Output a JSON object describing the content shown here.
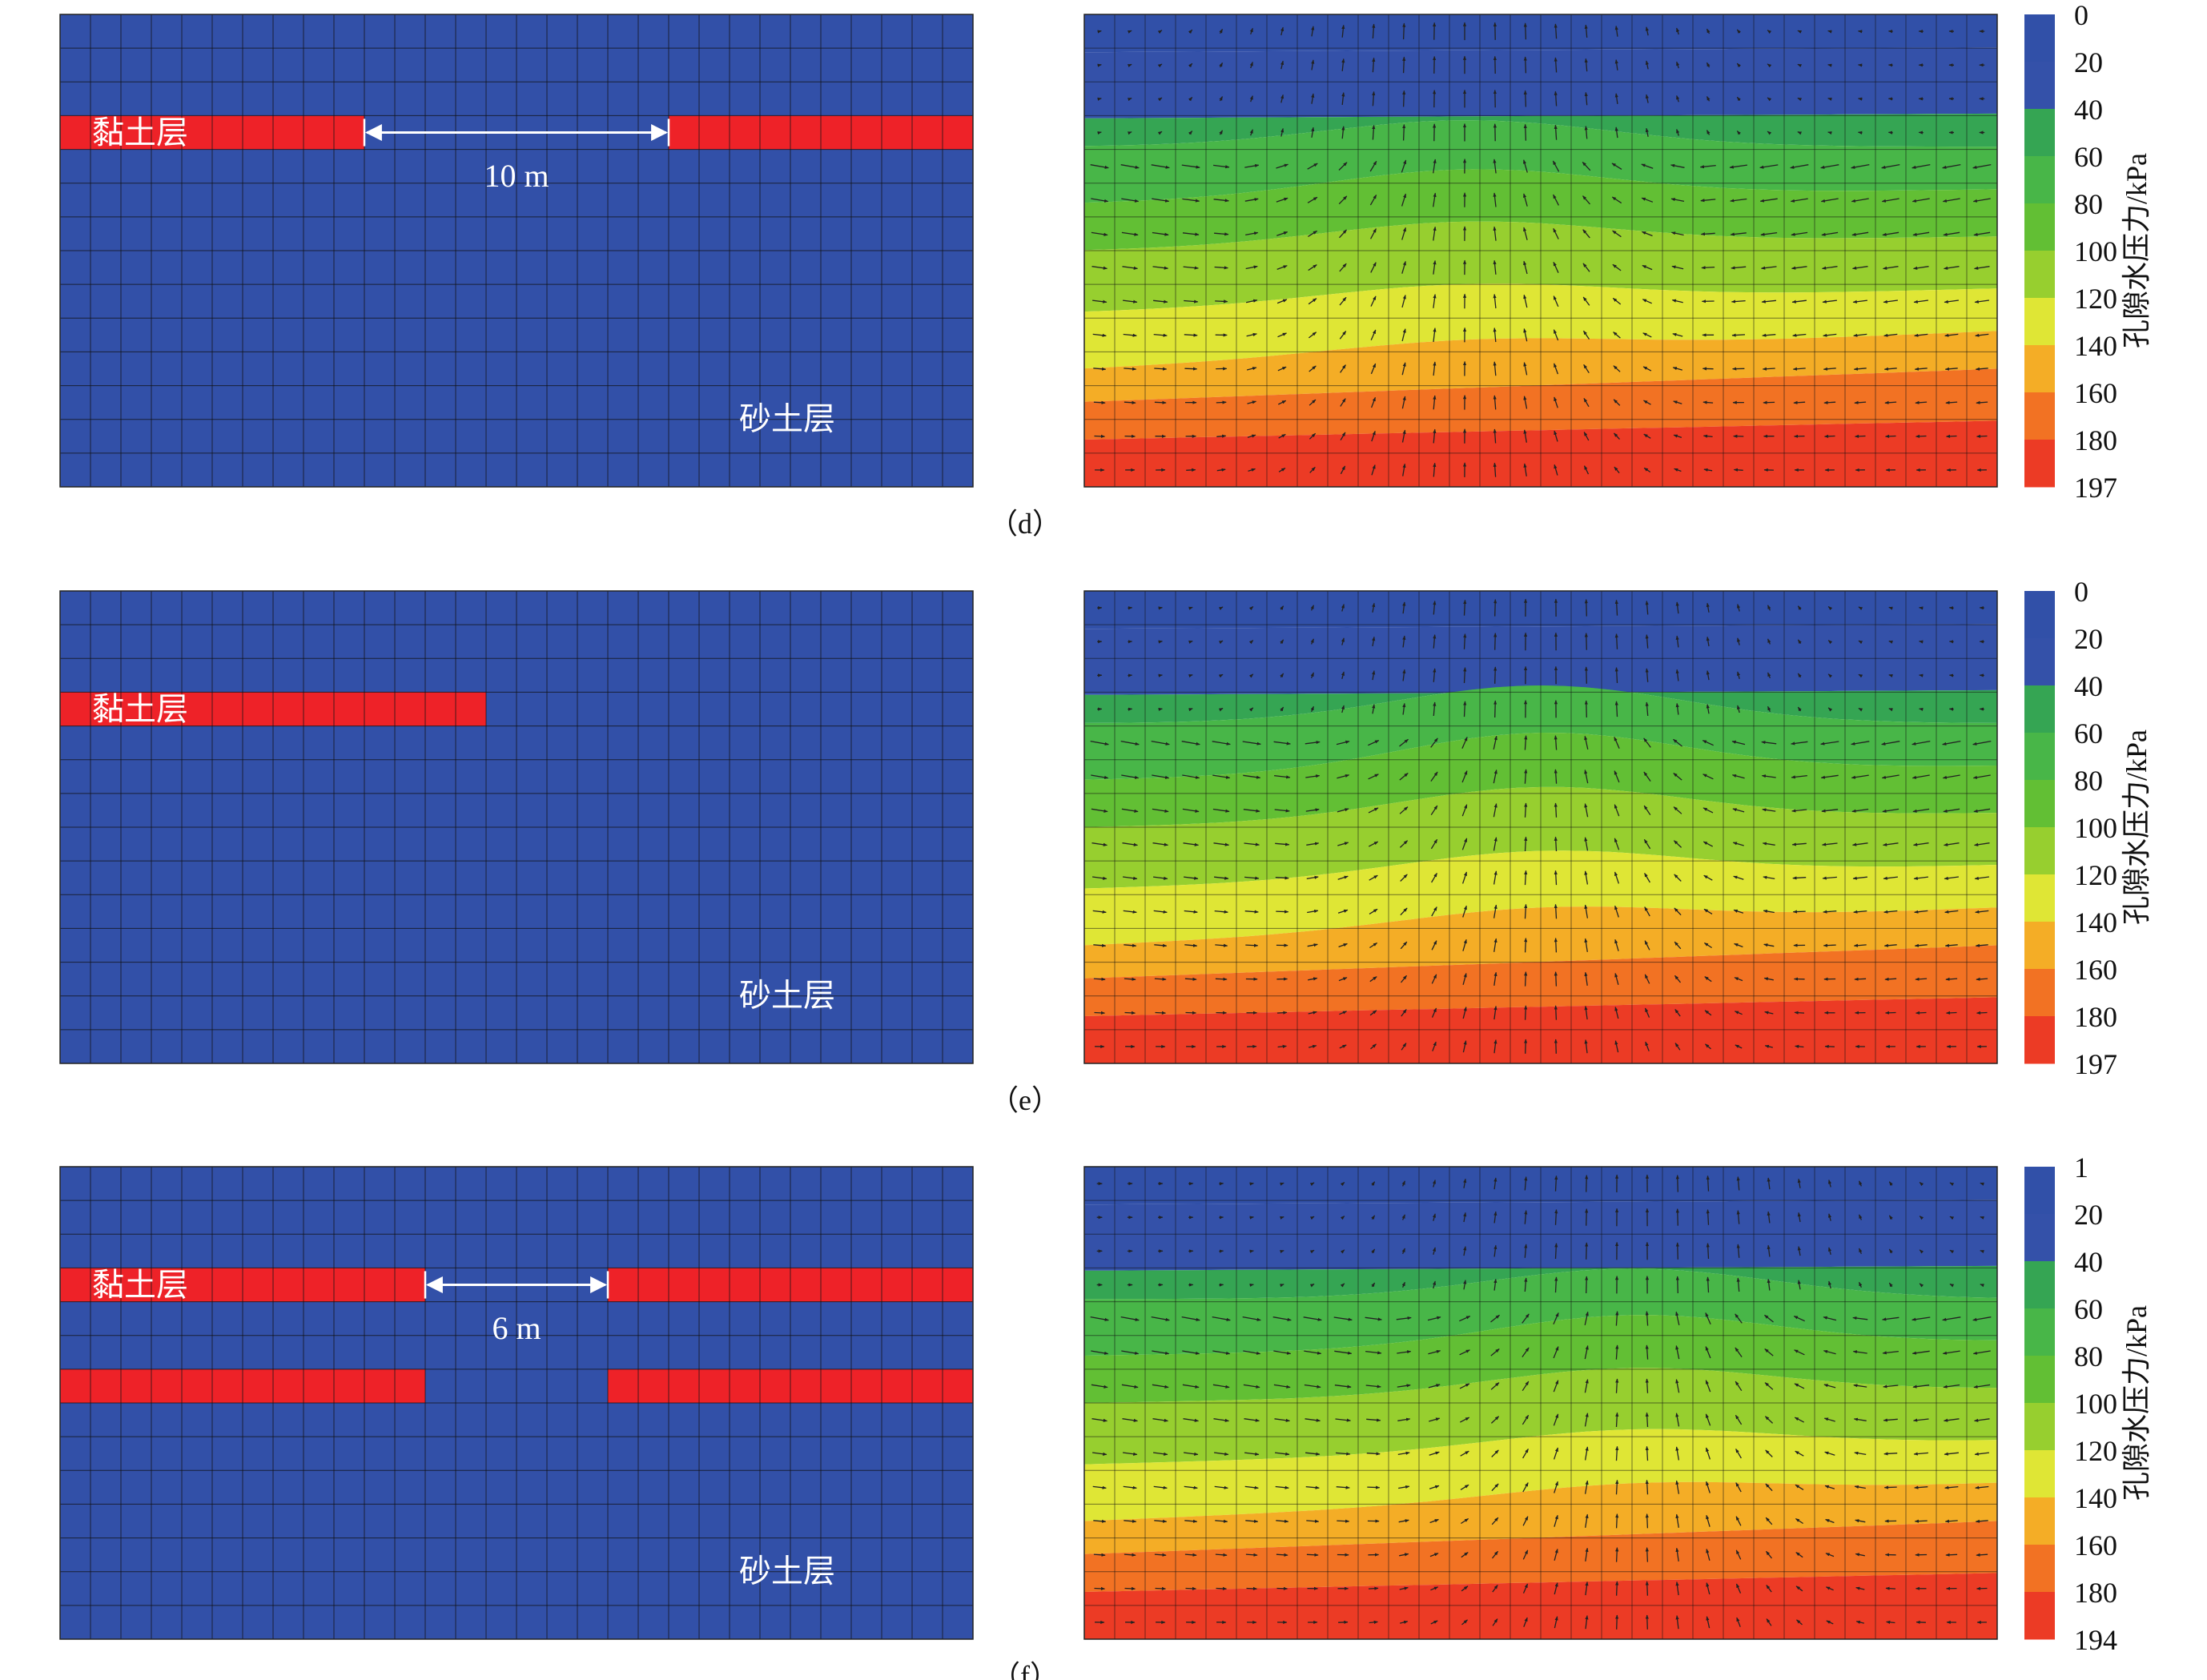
{
  "colors": {
    "sand": "#3250a8",
    "clay": "#ee2228",
    "grid": "#111111",
    "arrow": "#222222"
  },
  "legend_colors": [
    "#3150a8",
    "#3451a9",
    "#35a553",
    "#48b648",
    "#62bf34",
    "#97cf2f",
    "#dfe635",
    "#f4ad26",
    "#f27223",
    "#ec3b25"
  ],
  "labels": {
    "clay": "黏土层",
    "sand": "砂土层",
    "legend_title": "孔隙水压力/kPa"
  },
  "panels": [
    {
      "id": "d",
      "caption": "（d）",
      "clay_layers": [
        {
          "row": 3,
          "segments": [
            [
              0,
              10
            ],
            [
              20,
              30
            ]
          ]
        }
      ],
      "gap_label": "10 m",
      "gap_cols": [
        10,
        20
      ],
      "legend_ticks": [
        "0",
        "20",
        "40",
        "60",
        "80",
        "100",
        "120",
        "140",
        "160",
        "180",
        "197"
      ]
    },
    {
      "id": "e",
      "caption": "（e）",
      "clay_layers": [
        {
          "row": 3,
          "segments": [
            [
              0,
              14
            ]
          ]
        }
      ],
      "gap_label": "",
      "legend_ticks": [
        "0",
        "20",
        "40",
        "60",
        "80",
        "100",
        "120",
        "140",
        "160",
        "180",
        "197"
      ]
    },
    {
      "id": "f",
      "caption": "（f）",
      "clay_layers": [
        {
          "row": 3,
          "segments": [
            [
              0,
              12
            ],
            [
              18,
              30
            ]
          ]
        },
        {
          "row": 6,
          "segments": [
            [
              0,
              12
            ],
            [
              18,
              30
            ]
          ]
        }
      ],
      "gap_label": "6 m",
      "gap_cols": [
        12,
        18
      ],
      "legend_ticks": [
        "1",
        "20",
        "40",
        "60",
        "80",
        "100",
        "120",
        "140",
        "160",
        "180",
        "194"
      ]
    }
  ]
}
